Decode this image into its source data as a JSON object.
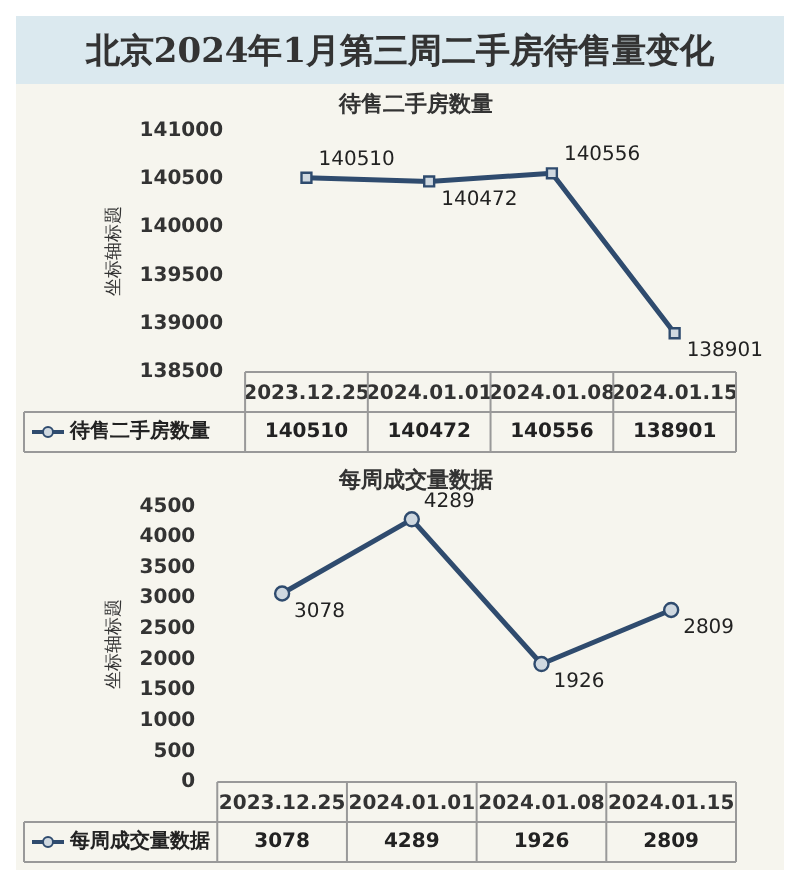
{
  "chart_data": [
    {
      "type": "line",
      "title": "北京2024年1月第三周二手房待售量变化",
      "subtitle": "待售二手房数量",
      "ylabel": "坐标轴标题",
      "categories": [
        "2023.12.25",
        "2024.01.01",
        "2024.01.08",
        "2024.01.15"
      ],
      "series": [
        {
          "name": "待售二手房数量",
          "color": "#2f4b6e",
          "values": [
            140510,
            140472,
            140556,
            138901
          ]
        }
      ],
      "annotations": [
        {
          "text": "140510",
          "x": "2023.12.25",
          "y": 140510
        },
        {
          "text": "140472",
          "x": "2024.01.01",
          "y": 140472
        },
        {
          "text": "140556",
          "x": "2024.01.08",
          "y": 140556
        },
        {
          "text": "138901",
          "x": "2024.01.15",
          "y": 138901
        }
      ],
      "ylim": [
        138500,
        141000
      ],
      "yticks": [
        138500,
        139000,
        139500,
        140000,
        140500,
        141000
      ],
      "data_labels": true,
      "legend": "bottom",
      "marker": "square"
    },
    {
      "type": "line",
      "title": "每周成交量数据",
      "ylabel": "坐标轴标题",
      "categories": [
        "2023.12.25",
        "2024.01.01",
        "2024.01.08",
        "2024.01.15"
      ],
      "series": [
        {
          "name": "每周成交量数据",
          "color": "#2f4b6e",
          "values": [
            3078,
            4289,
            1926,
            2809
          ]
        }
      ],
      "annotations": [
        {
          "text": "3078",
          "x": "2023.12.25",
          "y": 3078
        },
        {
          "text": "4289",
          "x": "2024.01.01",
          "y": 4289
        },
        {
          "text": "1926",
          "x": "2024.01.08",
          "y": 1926
        },
        {
          "text": "2809",
          "x": "2024.01.15",
          "y": 2809
        }
      ],
      "ylim": [
        0,
        4500
      ],
      "yticks": [
        0,
        500,
        1000,
        1500,
        2000,
        2500,
        3000,
        3500,
        4000,
        4500
      ],
      "data_labels": true,
      "legend": "bottom",
      "marker": "circle"
    }
  ]
}
